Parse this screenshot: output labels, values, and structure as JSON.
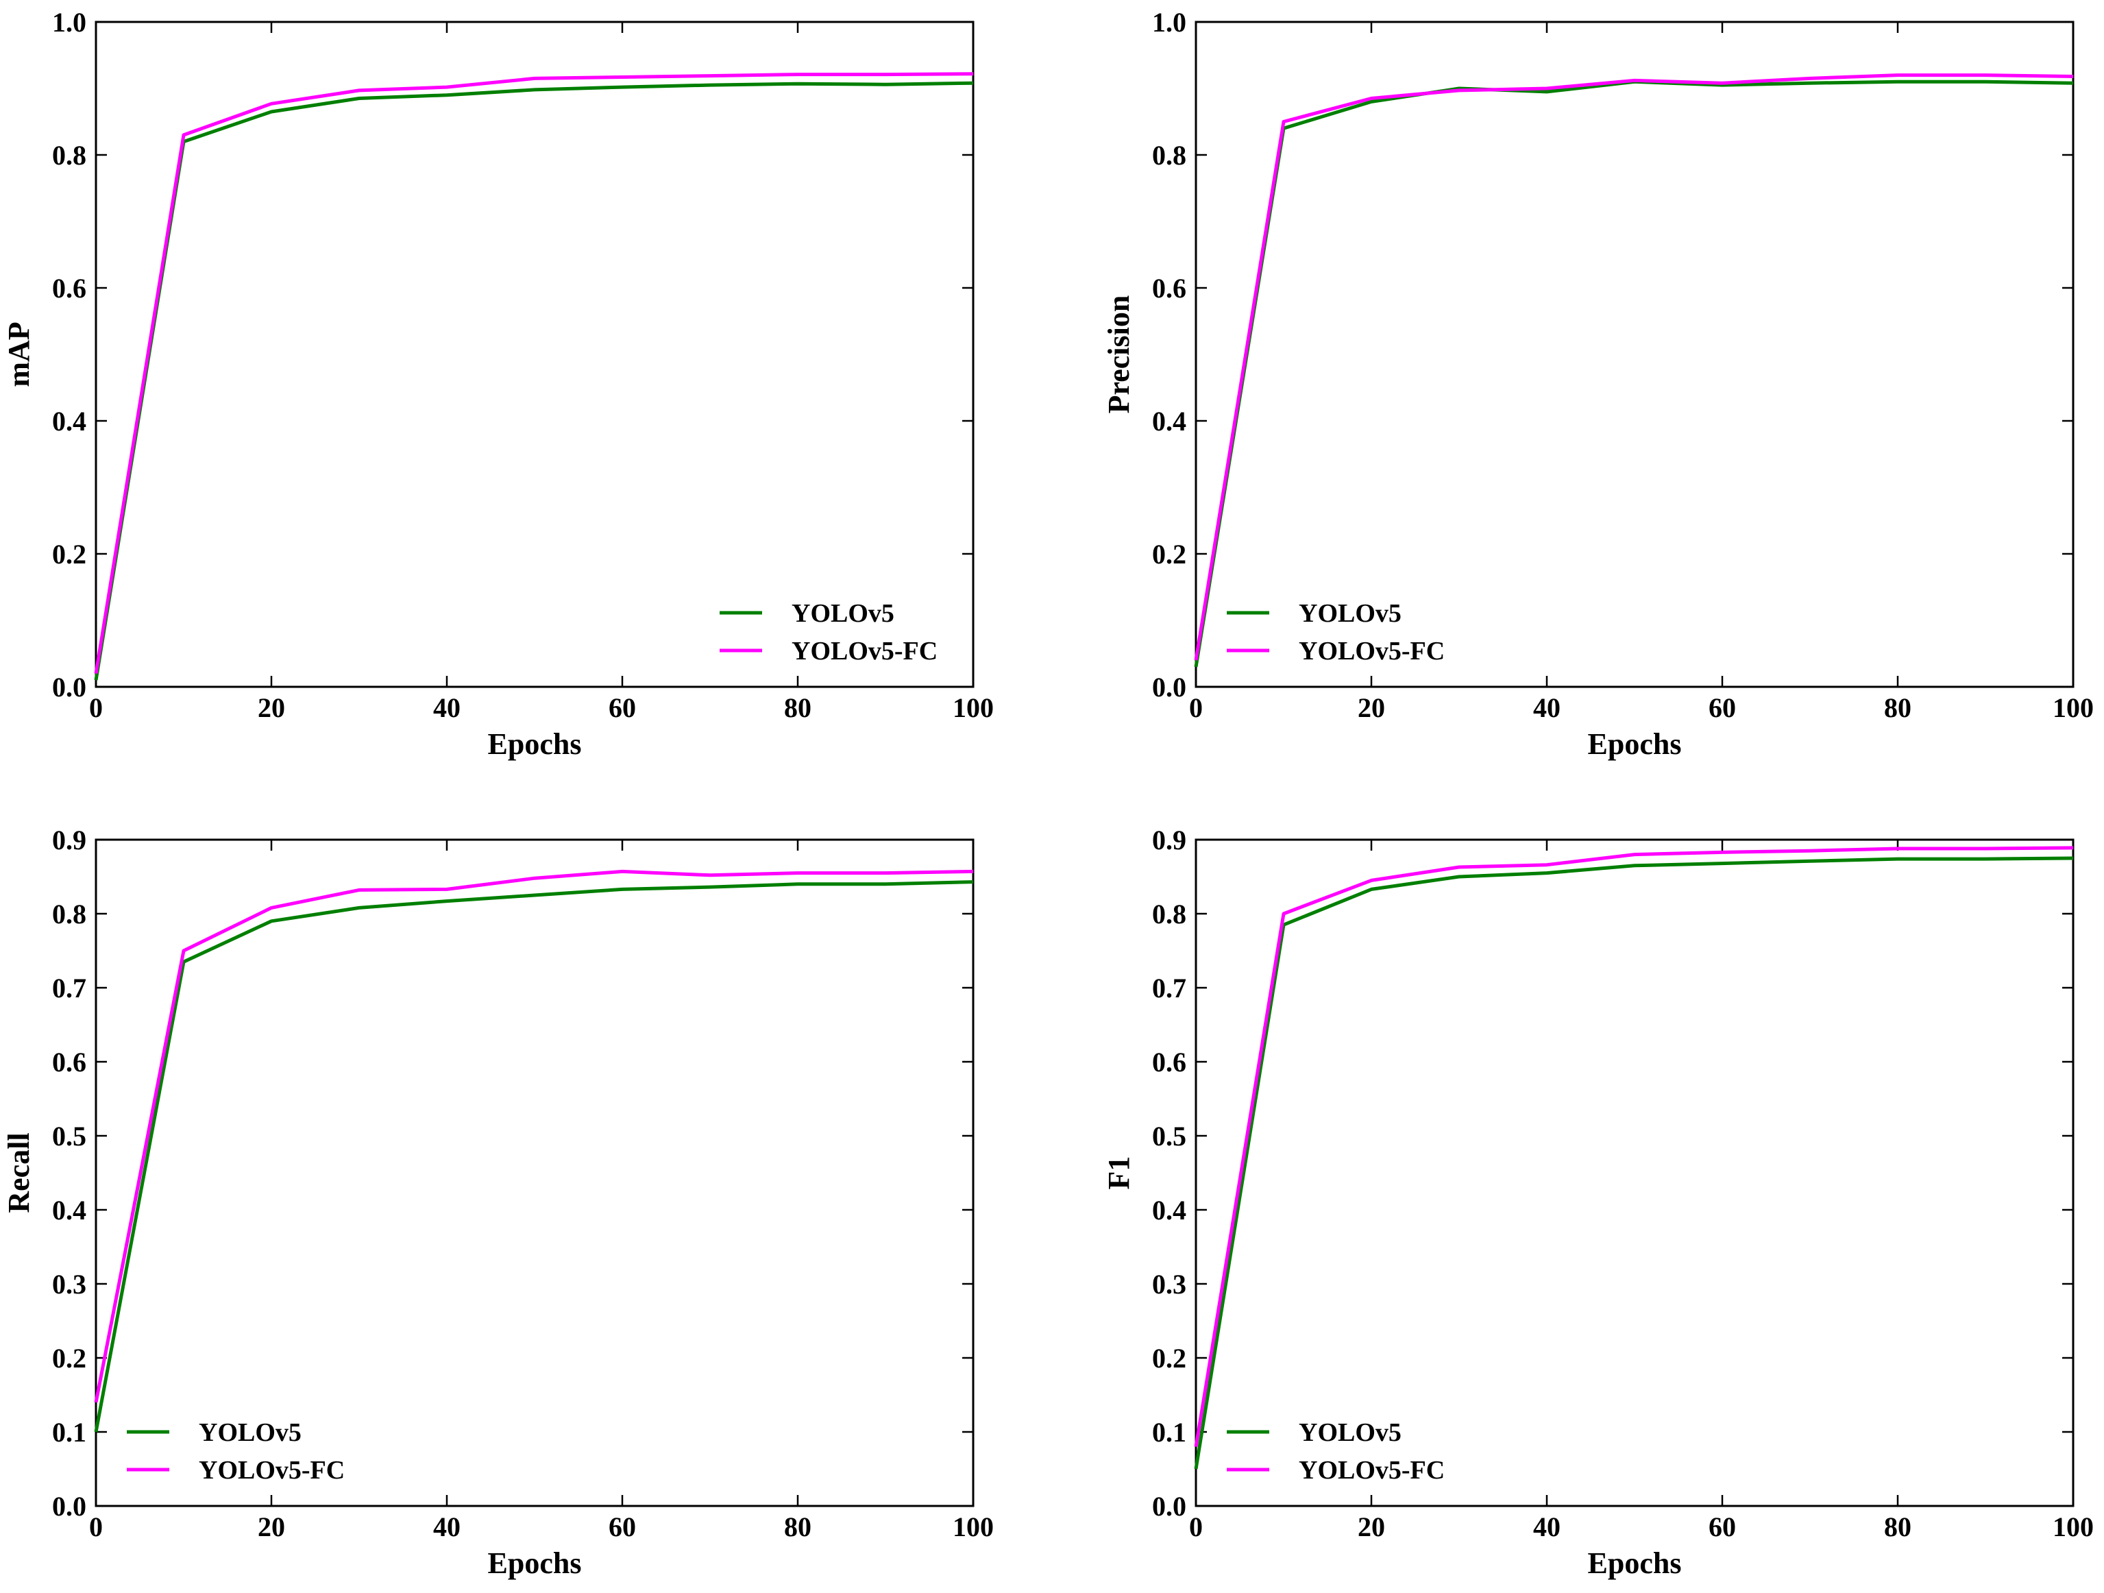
{
  "chart_data": [
    {
      "type": "line",
      "id": "map",
      "title": "",
      "xlabel": "Epochs",
      "ylabel": "mAP",
      "xlim": [
        0,
        100
      ],
      "ylim": [
        0,
        1.0
      ],
      "xticks": [
        0,
        20,
        40,
        60,
        80,
        100
      ],
      "yticks": [
        0.0,
        0.2,
        0.4,
        0.6,
        0.8,
        1.0
      ],
      "tick_decimals": 1,
      "legend_position": "lower-right",
      "x": [
        0,
        10,
        20,
        30,
        40,
        50,
        60,
        70,
        80,
        90,
        100
      ],
      "series": [
        {
          "name": "YOLOv5",
          "color": "#007f00",
          "values": [
            0.01,
            0.82,
            0.865,
            0.885,
            0.89,
            0.898,
            0.902,
            0.905,
            0.907,
            0.906,
            0.908
          ]
        },
        {
          "name": "YOLOv5-FC",
          "color": "#ff00ff",
          "values": [
            0.02,
            0.83,
            0.877,
            0.897,
            0.902,
            0.915,
            0.917,
            0.919,
            0.921,
            0.921,
            0.922
          ]
        }
      ]
    },
    {
      "type": "line",
      "id": "precision",
      "title": "",
      "xlabel": "Epochs",
      "ylabel": "Precision",
      "xlim": [
        0,
        100
      ],
      "ylim": [
        0,
        1.0
      ],
      "xticks": [
        0,
        20,
        40,
        60,
        80,
        100
      ],
      "yticks": [
        0.0,
        0.2,
        0.4,
        0.6,
        0.8,
        1.0
      ],
      "tick_decimals": 1,
      "legend_position": "lower-left",
      "x": [
        0,
        10,
        20,
        30,
        40,
        50,
        60,
        70,
        80,
        90,
        100
      ],
      "series": [
        {
          "name": "YOLOv5",
          "color": "#007f00",
          "values": [
            0.03,
            0.84,
            0.88,
            0.9,
            0.895,
            0.91,
            0.905,
            0.908,
            0.91,
            0.91,
            0.908
          ]
        },
        {
          "name": "YOLOv5-FC",
          "color": "#ff00ff",
          "values": [
            0.04,
            0.85,
            0.885,
            0.897,
            0.9,
            0.912,
            0.908,
            0.915,
            0.92,
            0.92,
            0.918
          ]
        }
      ]
    },
    {
      "type": "line",
      "id": "recall",
      "title": "",
      "xlabel": "Epochs",
      "ylabel": "Recall",
      "xlim": [
        0,
        100
      ],
      "ylim": [
        0,
        0.9
      ],
      "xticks": [
        0,
        20,
        40,
        60,
        80,
        100
      ],
      "yticks": [
        0.0,
        0.1,
        0.2,
        0.3,
        0.4,
        0.5,
        0.6,
        0.7,
        0.8,
        0.9
      ],
      "tick_decimals": 1,
      "legend_position": "lower-left",
      "x": [
        0,
        10,
        20,
        30,
        40,
        50,
        60,
        70,
        80,
        90,
        100
      ],
      "series": [
        {
          "name": "YOLOv5",
          "color": "#007f00",
          "values": [
            0.1,
            0.735,
            0.79,
            0.808,
            0.817,
            0.825,
            0.833,
            0.836,
            0.84,
            0.84,
            0.843
          ]
        },
        {
          "name": "YOLOv5-FC",
          "color": "#ff00ff",
          "values": [
            0.14,
            0.75,
            0.808,
            0.832,
            0.833,
            0.848,
            0.857,
            0.852,
            0.855,
            0.855,
            0.857
          ]
        }
      ]
    },
    {
      "type": "line",
      "id": "f1",
      "title": "",
      "xlabel": "Epochs",
      "ylabel": "F1",
      "xlim": [
        0,
        100
      ],
      "ylim": [
        0,
        0.9
      ],
      "xticks": [
        0,
        20,
        40,
        60,
        80,
        100
      ],
      "yticks": [
        0.0,
        0.1,
        0.2,
        0.3,
        0.4,
        0.5,
        0.6,
        0.7,
        0.8,
        0.9
      ],
      "tick_decimals": 1,
      "legend_position": "lower-left",
      "x": [
        0,
        10,
        20,
        30,
        40,
        50,
        60,
        70,
        80,
        90,
        100
      ],
      "series": [
        {
          "name": "YOLOv5",
          "color": "#007f00",
          "values": [
            0.05,
            0.785,
            0.833,
            0.85,
            0.855,
            0.865,
            0.868,
            0.871,
            0.874,
            0.874,
            0.875
          ]
        },
        {
          "name": "YOLOv5-FC",
          "color": "#ff00ff",
          "values": [
            0.08,
            0.8,
            0.845,
            0.863,
            0.866,
            0.88,
            0.883,
            0.885,
            0.888,
            0.888,
            0.889
          ]
        }
      ]
    }
  ]
}
